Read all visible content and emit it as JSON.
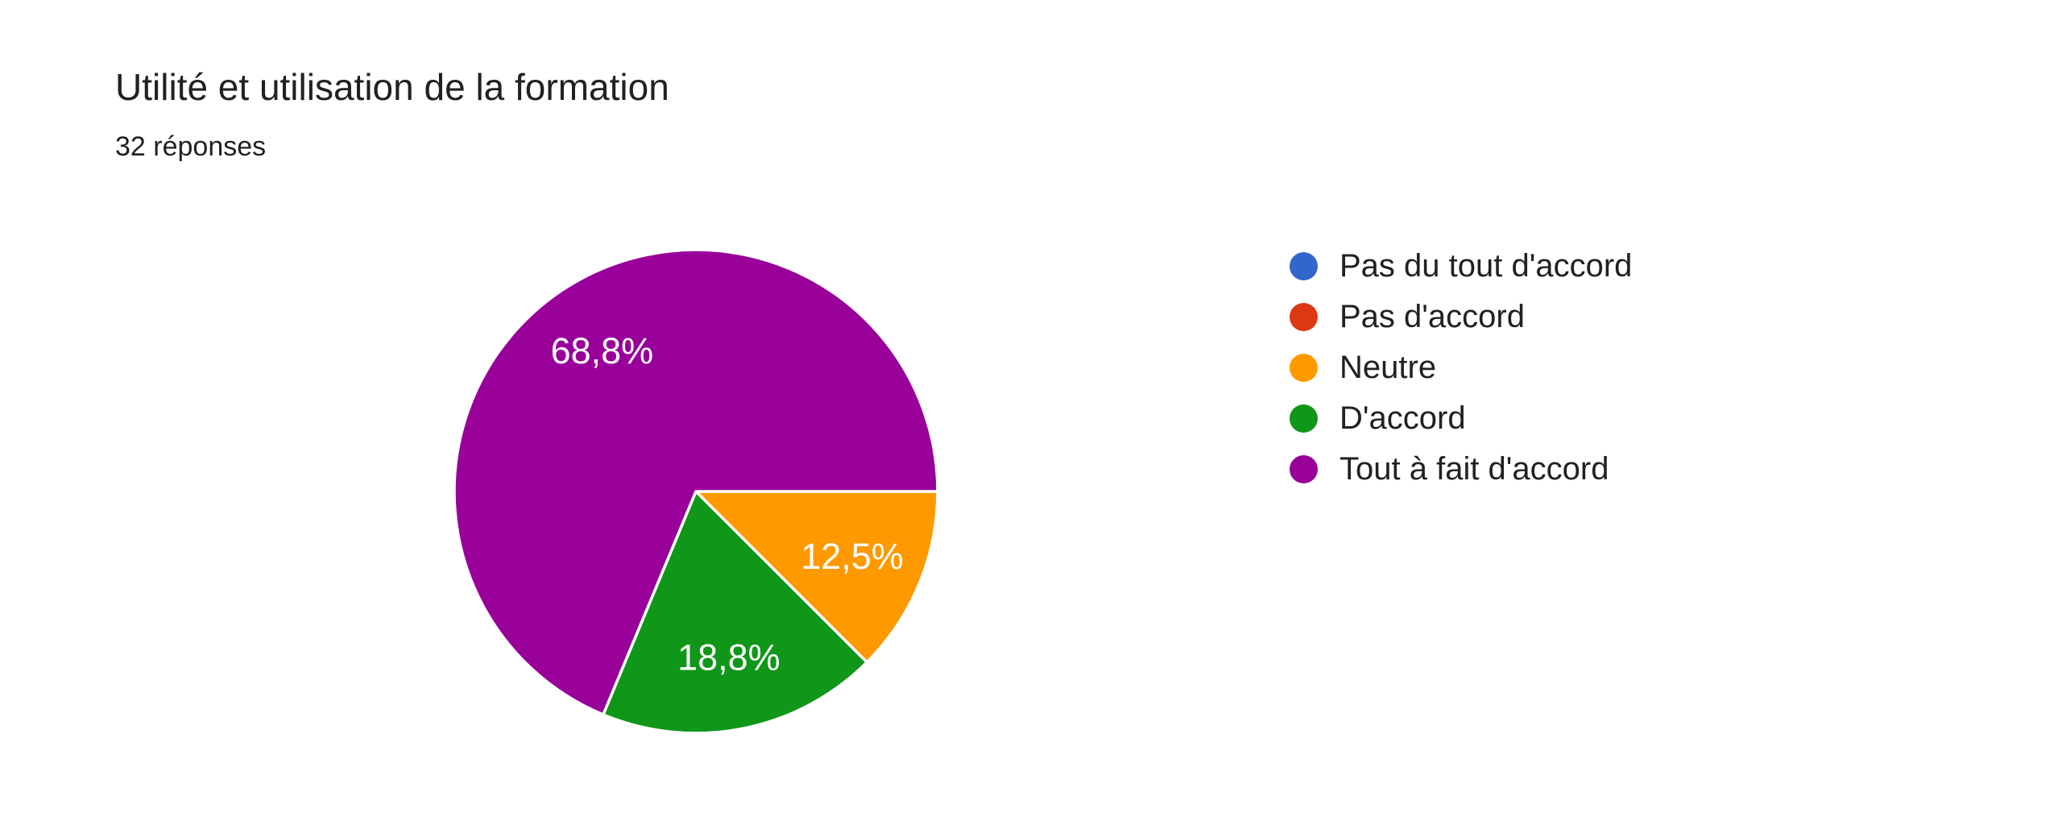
{
  "header": {
    "title": "Utilité et utilisation de la formation",
    "subtitle": "32 réponses"
  },
  "chart_data": {
    "type": "pie",
    "title": "Utilité et utilisation de la formation",
    "subtitle": "32 réponses",
    "categories": [
      "Pas du tout d'accord",
      "Pas d'accord",
      "Neutre",
      "D'accord",
      "Tout à fait d'accord"
    ],
    "values_percent": [
      0,
      0,
      12.5,
      18.8,
      68.8
    ],
    "slice_labels": [
      "",
      "",
      "12,5%",
      "18,8%",
      "68,8%"
    ],
    "colors": [
      "#3366CC",
      "#DC3912",
      "#FF9900",
      "#109618",
      "#990099"
    ],
    "start_angle_deg": 0,
    "direction": "clockwise",
    "legend_position": "right",
    "slice_label_color": "#FFFFFF",
    "separator_color": "#FFFFFF"
  }
}
